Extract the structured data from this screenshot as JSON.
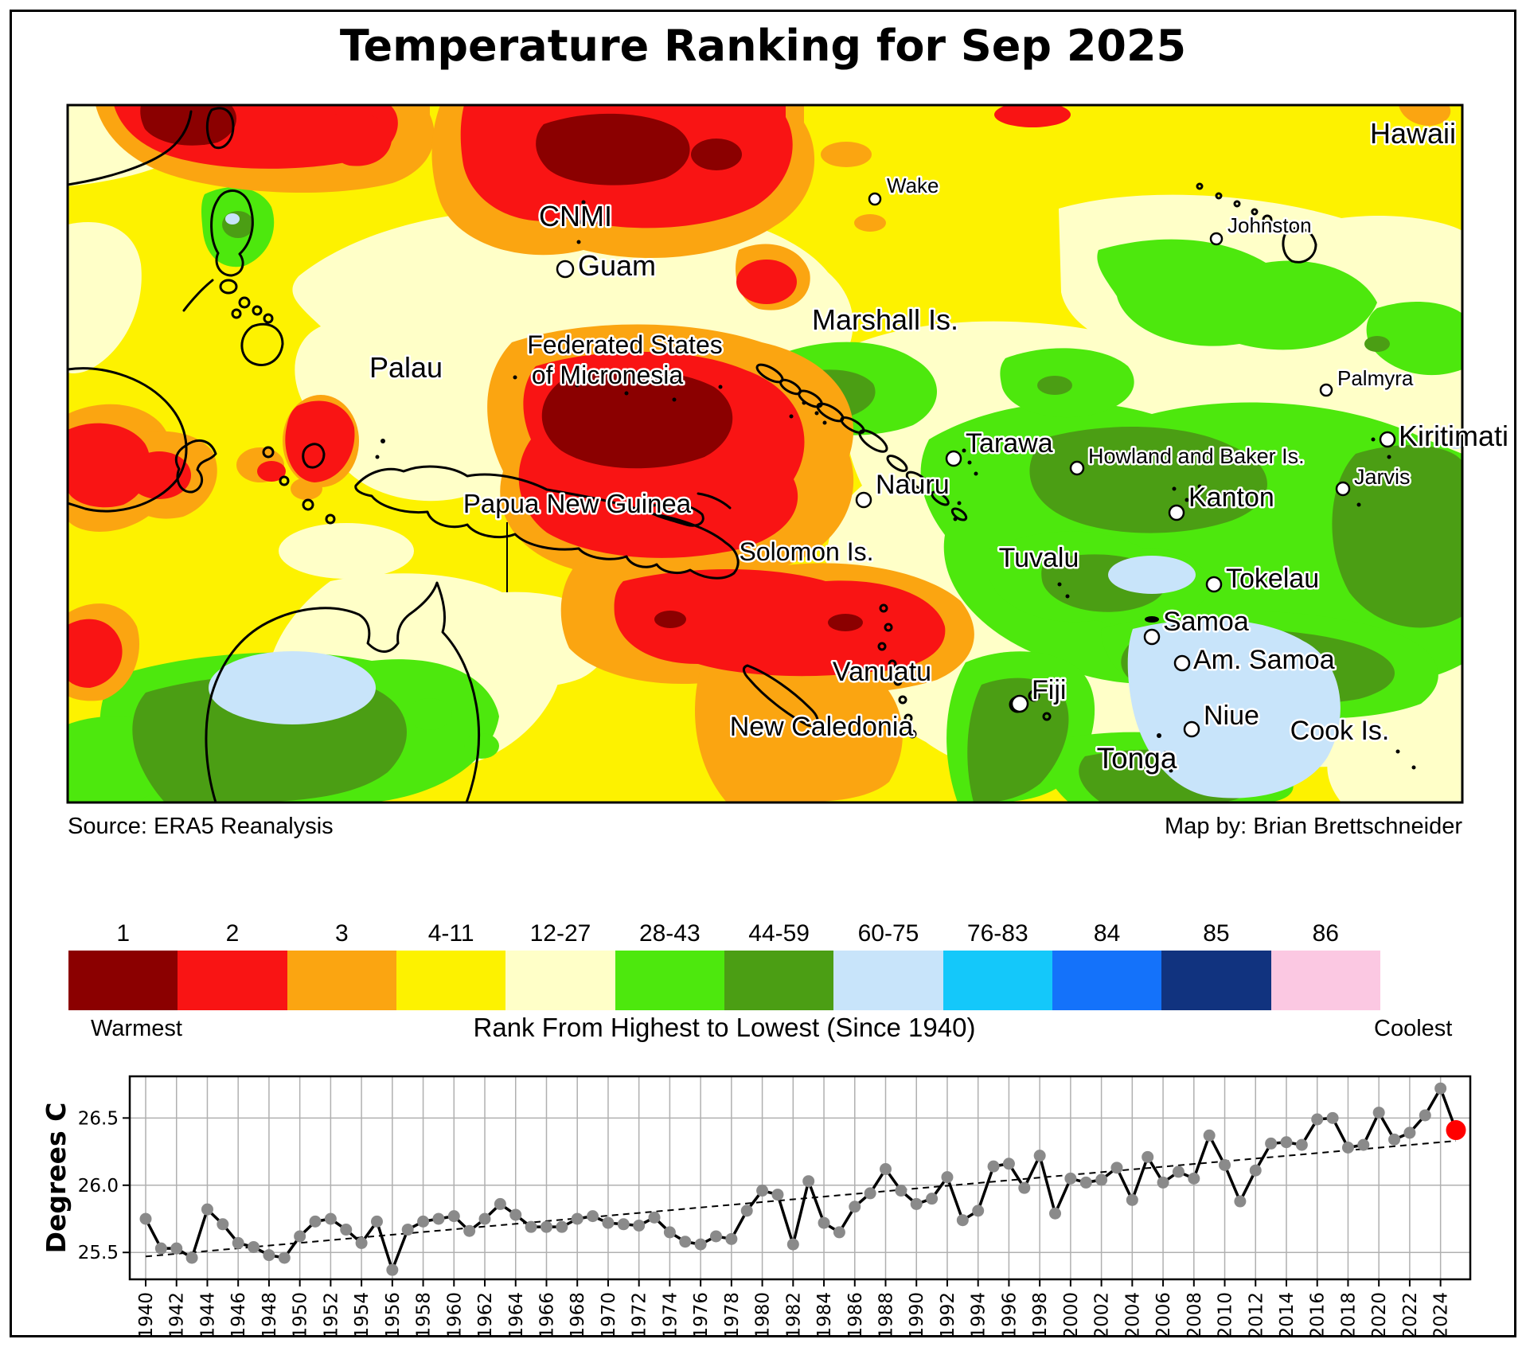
{
  "title": "Temperature Ranking for Sep 2025",
  "map": {
    "source": "Source: ERA5 Reanalysis",
    "credit": "Map by: Brian Brettschneider",
    "labels": [
      {
        "id": "hawaii",
        "text": "Hawaii"
      },
      {
        "id": "wake",
        "text": "Wake"
      },
      {
        "id": "johnston",
        "text": "Johnston"
      },
      {
        "id": "cnmi",
        "text": "CNMI"
      },
      {
        "id": "guam",
        "text": "Guam"
      },
      {
        "id": "marshall",
        "text": "Marshall Is."
      },
      {
        "id": "palmyra",
        "text": "Palmyra"
      },
      {
        "id": "fsm1",
        "text": "Federated States"
      },
      {
        "id": "fsm2",
        "text": "of Micronesia"
      },
      {
        "id": "palau",
        "text": "Palau"
      },
      {
        "id": "tarawa",
        "text": "Tarawa"
      },
      {
        "id": "howland",
        "text": "Howland and Baker Is."
      },
      {
        "id": "kiritimati",
        "text": "Kiritimati"
      },
      {
        "id": "jarvis",
        "text": "Jarvis"
      },
      {
        "id": "nauru",
        "text": "Nauru"
      },
      {
        "id": "kanton",
        "text": "Kanton"
      },
      {
        "id": "png",
        "text": "Papua New Guinea"
      },
      {
        "id": "solomon",
        "text": "Solomon Is."
      },
      {
        "id": "tuvalu",
        "text": "Tuvalu"
      },
      {
        "id": "tokelau",
        "text": "Tokelau"
      },
      {
        "id": "samoa",
        "text": "Samoa"
      },
      {
        "id": "am_samoa",
        "text": "Am. Samoa"
      },
      {
        "id": "vanuatu",
        "text": "Vanuatu"
      },
      {
        "id": "fiji",
        "text": "Fiji"
      },
      {
        "id": "new_caledonia",
        "text": "New Caledonia"
      },
      {
        "id": "niue",
        "text": "Niue"
      },
      {
        "id": "cook",
        "text": "Cook Is."
      },
      {
        "id": "tonga",
        "text": "Tonga"
      }
    ]
  },
  "legend": {
    "warmest": "Warmest",
    "coolest": "Coolest",
    "caption": "Rank From Highest to Lowest (Since 1940)",
    "items": [
      {
        "label": "1",
        "color": "#8B0000"
      },
      {
        "label": "2",
        "color": "#F91414"
      },
      {
        "label": "3",
        "color": "#FBA511"
      },
      {
        "label": "4-11",
        "color": "#FDF200"
      },
      {
        "label": "12-27",
        "color": "#FFFFC8"
      },
      {
        "label": "28-43",
        "color": "#4DE80D"
      },
      {
        "label": "44-59",
        "color": "#4B9E14"
      },
      {
        "label": "60-75",
        "color": "#C8E4FA"
      },
      {
        "label": "76-83",
        "color": "#14C8FA"
      },
      {
        "label": "84",
        "color": "#1472FA"
      },
      {
        "label": "85",
        "color": "#11337F"
      },
      {
        "label": "86",
        "color": "#FBC8E2"
      }
    ]
  },
  "chart_data": {
    "type": "line",
    "ylabel": "Degrees C",
    "yticks": [
      25.5,
      26.0,
      26.5
    ],
    "ylim": [
      25.3,
      26.81
    ],
    "xtick_step": 2,
    "grid": true,
    "line_color": "#000000",
    "marker_color": "#8a8a8a",
    "highlight_last_color": "#FF0000",
    "trend": {
      "start": 25.47,
      "end": 26.33
    },
    "x": [
      1940,
      1941,
      1942,
      1943,
      1944,
      1945,
      1946,
      1947,
      1948,
      1949,
      1950,
      1951,
      1952,
      1953,
      1954,
      1955,
      1956,
      1957,
      1958,
      1959,
      1960,
      1961,
      1962,
      1963,
      1964,
      1965,
      1966,
      1967,
      1968,
      1969,
      1970,
      1971,
      1972,
      1973,
      1974,
      1975,
      1976,
      1977,
      1978,
      1979,
      1980,
      1981,
      1982,
      1983,
      1984,
      1985,
      1986,
      1987,
      1988,
      1989,
      1990,
      1991,
      1992,
      1993,
      1994,
      1995,
      1996,
      1997,
      1998,
      1999,
      2000,
      2001,
      2002,
      2003,
      2004,
      2005,
      2006,
      2007,
      2008,
      2009,
      2010,
      2011,
      2012,
      2013,
      2014,
      2015,
      2016,
      2017,
      2018,
      2019,
      2020,
      2021,
      2022,
      2023,
      2024,
      2025
    ],
    "values": [
      25.75,
      25.53,
      25.53,
      25.46,
      25.82,
      25.71,
      25.57,
      25.54,
      25.48,
      25.46,
      25.62,
      25.73,
      25.75,
      25.67,
      25.57,
      25.73,
      25.37,
      25.67,
      25.73,
      25.75,
      25.77,
      25.66,
      25.75,
      25.86,
      25.78,
      25.69,
      25.69,
      25.69,
      25.75,
      25.77,
      25.72,
      25.71,
      25.7,
      25.76,
      25.65,
      25.58,
      25.56,
      25.62,
      25.6,
      25.81,
      25.96,
      25.93,
      25.56,
      26.03,
      25.72,
      25.65,
      25.84,
      25.94,
      26.12,
      25.96,
      25.86,
      25.9,
      26.06,
      25.74,
      25.81,
      26.14,
      26.16,
      25.98,
      26.22,
      25.79,
      26.05,
      26.02,
      26.04,
      26.13,
      25.89,
      26.21,
      26.02,
      26.1,
      26.05,
      26.37,
      26.15,
      25.88,
      26.11,
      26.31,
      26.32,
      26.3,
      26.49,
      26.5,
      26.28,
      26.3,
      26.54,
      26.34,
      26.39,
      26.52,
      26.72,
      26.41
    ]
  }
}
